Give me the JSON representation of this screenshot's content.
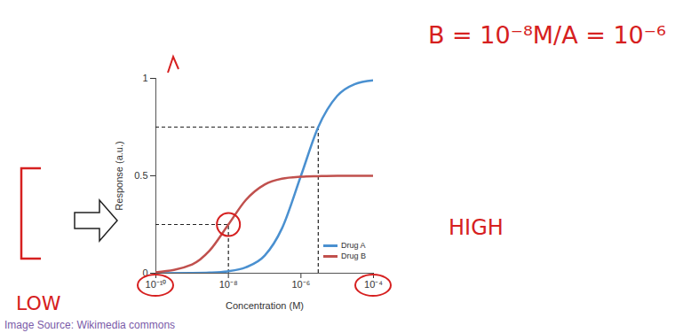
{
  "chart_data": {
    "type": "line",
    "x_label": "Concentration (M)",
    "y_label": "Response (a.u.)",
    "log": "x",
    "xlim": [
      1e-10,
      0.0001
    ],
    "xticks": [
      {
        "value": 1e-10,
        "label": "10⁻¹⁰"
      },
      {
        "value": 1e-08,
        "label": "10⁻⁸"
      },
      {
        "value": 1e-06,
        "label": "10⁻⁶"
      },
      {
        "value": 0.0001,
        "label": "10⁻⁴"
      }
    ],
    "ylim": [
      0,
      1
    ],
    "yticks": [
      0,
      0.5,
      1
    ],
    "x": [
      1e-10,
      1e-09,
      3e-09,
      1e-08,
      3e-08,
      1e-07,
      3e-07,
      1e-06,
      3e-06,
      1e-05,
      3e-05,
      0.0001
    ],
    "series": [
      {
        "name": "Drug A",
        "color": "#4a90d0",
        "values": [
          0,
          0.001,
          0.003,
          0.01,
          0.03,
          0.09,
          0.23,
          0.5,
          0.75,
          0.91,
          0.97,
          0.99
        ]
      },
      {
        "name": "Drug B",
        "color": "#c0504d",
        "values": [
          0.005,
          0.045,
          0.115,
          0.25,
          0.375,
          0.455,
          0.485,
          0.495,
          0.498,
          0.5,
          0.5,
          0.5
        ]
      }
    ],
    "legend": "bottom-right",
    "reference_points": [
      {
        "x": 1e-08,
        "y": 0.25
      },
      {
        "x": 3e-06,
        "y": 0.75
      }
    ],
    "annotations": [
      "B = 10⁻⁸M/A = 10⁻⁶",
      "LOW",
      "HIGH"
    ],
    "source": "Image Source: Wikimedia commons"
  }
}
